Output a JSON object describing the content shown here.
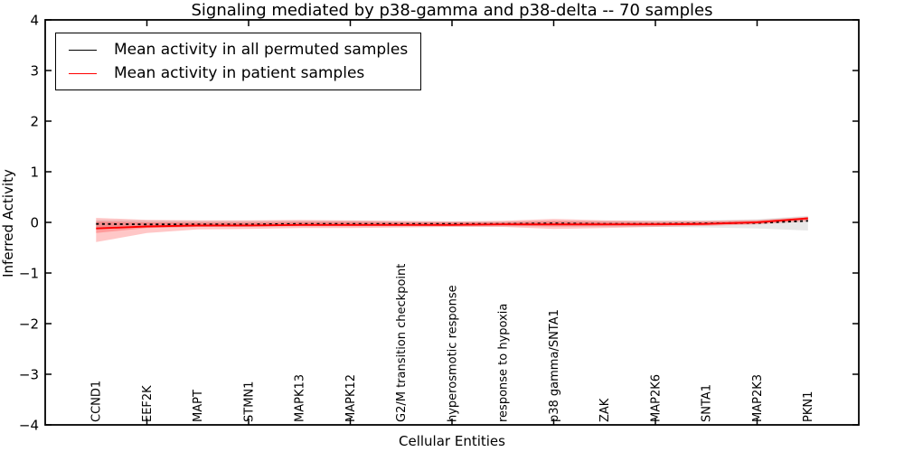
{
  "chart_data": {
    "type": "line",
    "title": "Signaling mediated by p38-gamma and p38-delta -- 70 samples",
    "xlabel": "Cellular Entities",
    "ylabel": "Inferred Activity",
    "ylim": [
      -4,
      4
    ],
    "grid": false,
    "legend_position": "upper left",
    "categories": [
      "CCND1",
      "EEF2K",
      "MAPT",
      "STMN1",
      "MAPK13",
      "MAPK12",
      "G2/M transition checkpoint",
      "hyperosmotic response",
      "response to hypoxia",
      "p38 gamma/SNTA1",
      "ZAK",
      "MAP2K6",
      "SNTA1",
      "MAP2K3",
      "PKN1"
    ],
    "yticks": [
      4,
      3,
      2,
      1,
      0,
      -1,
      -2,
      -3,
      -4
    ],
    "ytick_labels": [
      "4",
      "3",
      "2",
      "1",
      "0",
      "−1",
      "−2",
      "−3",
      "−4"
    ],
    "xtick_units": [
      2,
      4,
      6,
      8,
      10,
      12,
      14
    ],
    "series": [
      {
        "name": "Mean activity in all permuted samples",
        "color": "#000000",
        "style": "dashed",
        "values": [
          -0.03,
          -0.04,
          -0.04,
          -0.04,
          -0.03,
          -0.03,
          -0.03,
          -0.03,
          -0.03,
          -0.02,
          -0.03,
          -0.03,
          -0.02,
          -0.01,
          0.03
        ]
      },
      {
        "name": "Mean activity in patient samples",
        "color": "#ff0000",
        "style": "solid",
        "values": [
          -0.12,
          -0.08,
          -0.06,
          -0.06,
          -0.05,
          -0.05,
          -0.05,
          -0.05,
          -0.04,
          -0.04,
          -0.04,
          -0.04,
          -0.03,
          0.0,
          0.08
        ]
      }
    ],
    "bands": [
      {
        "name": "permuted-std-band",
        "color": "#000000",
        "opacity": 0.09,
        "upper": [
          0.05,
          0.04,
          0.03,
          0.03,
          0.03,
          0.03,
          0.02,
          0.02,
          0.02,
          0.03,
          0.03,
          0.03,
          0.04,
          0.06,
          0.13
        ],
        "lower": [
          -0.11,
          -0.1,
          -0.09,
          -0.09,
          -0.08,
          -0.08,
          -0.08,
          -0.08,
          -0.08,
          -0.08,
          -0.09,
          -0.09,
          -0.1,
          -0.12,
          -0.16
        ]
      },
      {
        "name": "patient-std-band-outer",
        "color": "#ff0000",
        "opacity": 0.22,
        "upper": [
          0.09,
          0.05,
          0.04,
          0.04,
          0.05,
          0.04,
          0.03,
          0.02,
          0.03,
          0.07,
          0.04,
          0.03,
          0.03,
          0.05,
          0.11
        ],
        "lower": [
          -0.39,
          -0.21,
          -0.14,
          -0.13,
          -0.11,
          -0.11,
          -0.1,
          -0.09,
          -0.09,
          -0.13,
          -0.11,
          -0.09,
          -0.07,
          -0.04,
          0.02
        ]
      },
      {
        "name": "patient-std-band-inner",
        "color": "#ff0000",
        "opacity": 0.22,
        "upper": [
          0.02,
          0.0,
          0.0,
          0.0,
          0.01,
          0.01,
          0.0,
          0.0,
          0.0,
          0.03,
          0.01,
          0.0,
          0.01,
          0.03,
          0.09
        ],
        "lower": [
          -0.21,
          -0.11,
          -0.09,
          -0.08,
          -0.07,
          -0.07,
          -0.06,
          -0.06,
          -0.06,
          -0.08,
          -0.07,
          -0.06,
          -0.05,
          -0.01,
          0.05
        ]
      }
    ]
  }
}
